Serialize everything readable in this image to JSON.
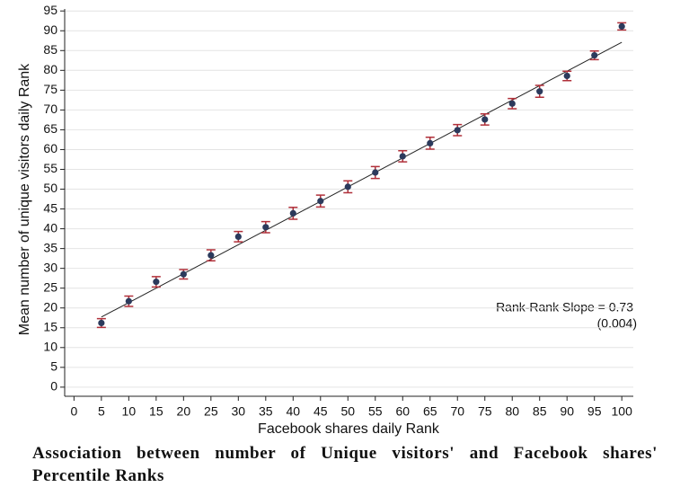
{
  "chart_data": {
    "type": "scatter",
    "x": [
      5,
      10,
      15,
      20,
      25,
      30,
      35,
      40,
      45,
      50,
      55,
      60,
      65,
      70,
      75,
      80,
      85,
      90,
      95,
      100
    ],
    "values": [
      16.2,
      21.7,
      26.6,
      28.5,
      33.3,
      38,
      40.4,
      43.9,
      47,
      50.6,
      54.2,
      58.3,
      61.6,
      64.9,
      67.6,
      71.6,
      74.7,
      78.6,
      83.8,
      91.1
    ],
    "errors": [
      1.1,
      1.3,
      1.3,
      1.2,
      1.4,
      1.3,
      1.4,
      1.5,
      1.5,
      1.5,
      1.5,
      1.4,
      1.5,
      1.4,
      1.4,
      1.3,
      1.5,
      1.2,
      1.1,
      0.9
    ],
    "color": "#2b3a5c",
    "error_color": "#b0303a",
    "fit": {
      "x": [
        5,
        100
      ],
      "y": [
        17.7,
        87.1
      ]
    },
    "xlabel": "Facebook shares daily Rank",
    "ylabel": "Mean number of unique visitors daily Rank",
    "annotation": [
      "Rank-Rank Slope = 0.73",
      "(0.004)"
    ],
    "xlim": [
      -1.7,
      102.1
    ],
    "ylim": [
      -2.3,
      95.5
    ],
    "xticks": [
      0,
      5,
      10,
      15,
      20,
      25,
      30,
      35,
      40,
      45,
      50,
      55,
      60,
      65,
      70,
      75,
      80,
      85,
      90,
      95,
      100
    ],
    "yticks": [
      0,
      5,
      10,
      15,
      20,
      25,
      30,
      35,
      40,
      45,
      50,
      55,
      60,
      65,
      70,
      75,
      80,
      85,
      90,
      95
    ],
    "grid": true
  },
  "caption": "Association between number of Unique visitors' and Facebook shares' Percentile Ranks"
}
